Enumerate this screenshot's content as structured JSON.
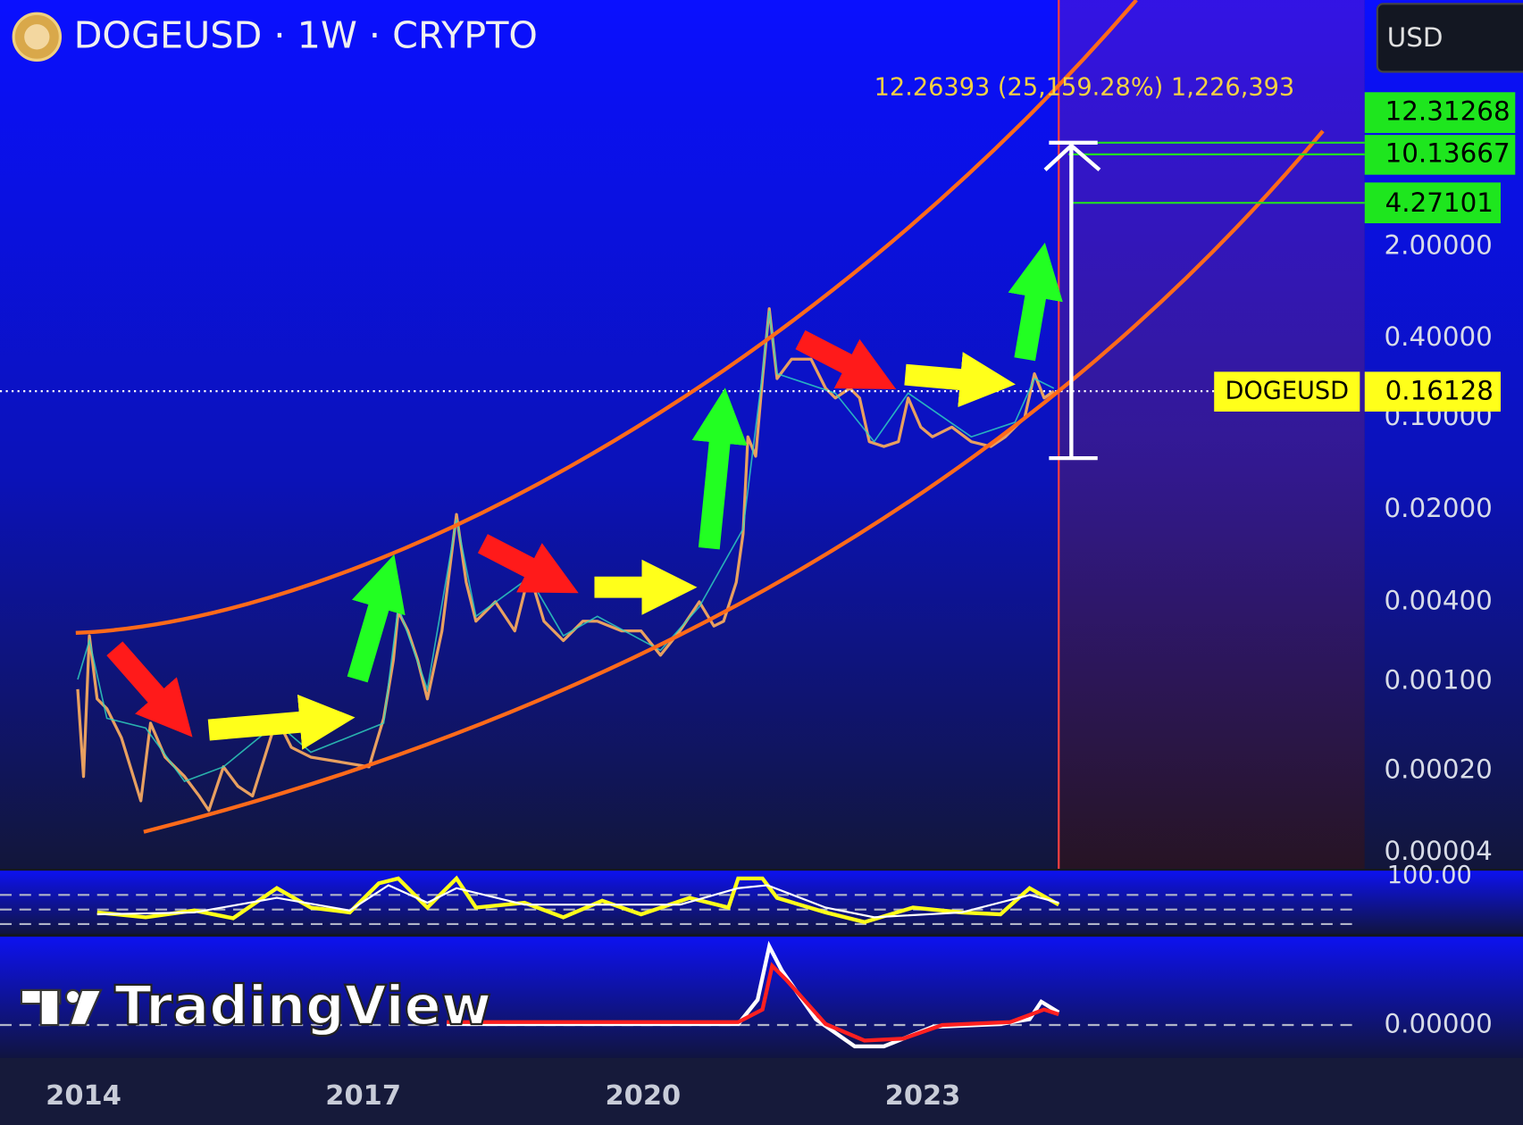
{
  "header": {
    "title": "DOGEUSD · 1W · CRYPTO",
    "currency": "USD"
  },
  "measure": {
    "label": "12.26393 (25,159.28%) 1,226,393"
  },
  "price_axis": {
    "labels": [
      "2.00000",
      "0.40000",
      "0.10000",
      "0.02000",
      "0.00400",
      "0.00100",
      "0.00020",
      "0.00004"
    ]
  },
  "price_tags": [
    "12.31268",
    "10.13667",
    "4.27101"
  ],
  "symbol_tag": {
    "name": "DOGEUSD",
    "price": "0.16128"
  },
  "indicators": {
    "rsi_axis": "100.00",
    "macd_axis": "0.00000"
  },
  "time_axis": [
    "2014",
    "2017",
    "2020",
    "2023"
  ],
  "watermark": "TradingView"
}
